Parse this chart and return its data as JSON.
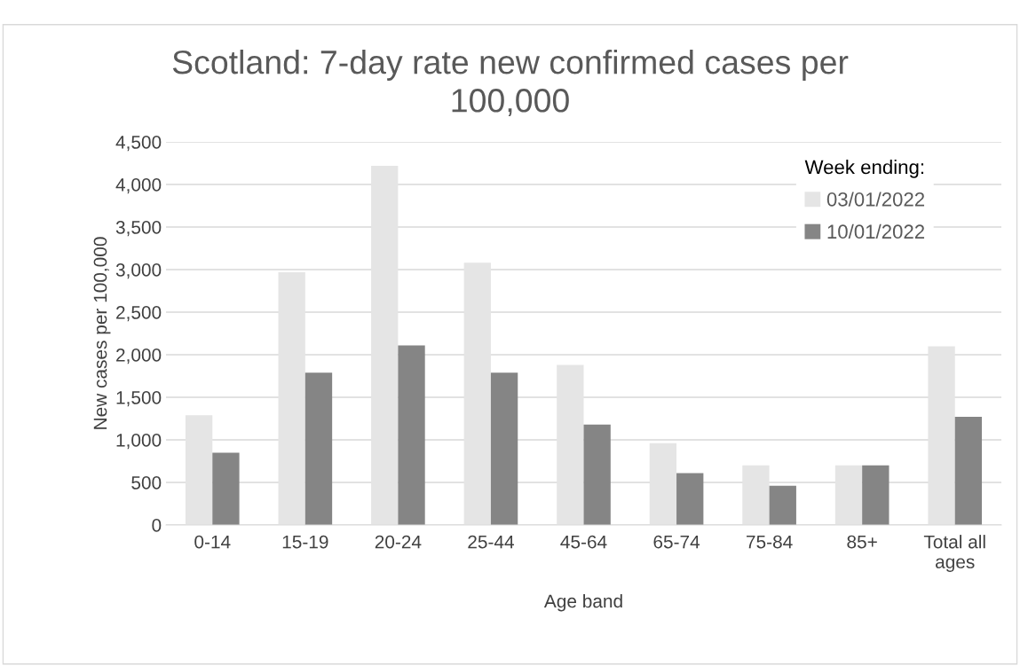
{
  "chart_data": {
    "type": "bar",
    "title": "Scotland: 7-day rate new confirmed cases per\n100,000",
    "xlabel": "Age band",
    "ylabel": "New cases per 100,000",
    "legend_title": "Week ending:",
    "categories": [
      "0-14",
      "15-19",
      "20-24",
      "25-44",
      "45-64",
      "65-74",
      "75-84",
      "85+",
      "Total all\nages"
    ],
    "series": [
      {
        "name": "03/01/2022",
        "color": "#e5e5e5",
        "values": [
          1290,
          2970,
          4220,
          3080,
          1880,
          960,
          700,
          700,
          2100
        ]
      },
      {
        "name": "10/01/2022",
        "color": "#858585",
        "values": [
          850,
          1790,
          2110,
          1790,
          1180,
          610,
          460,
          700,
          1270
        ]
      }
    ],
    "ylim": [
      0,
      4500
    ],
    "yticks": [
      {
        "value": 0,
        "label": "0"
      },
      {
        "value": 500,
        "label": "500"
      },
      {
        "value": 1000,
        "label": "1,000"
      },
      {
        "value": 1500,
        "label": "1,500"
      },
      {
        "value": 2000,
        "label": "2,000"
      },
      {
        "value": 2500,
        "label": "2,500"
      },
      {
        "value": 3000,
        "label": "3,000"
      },
      {
        "value": 3500,
        "label": "3,500"
      },
      {
        "value": 4000,
        "label": "4,000"
      },
      {
        "value": 4500,
        "label": "4,500"
      }
    ],
    "grid": "y",
    "legend": "top right"
  }
}
